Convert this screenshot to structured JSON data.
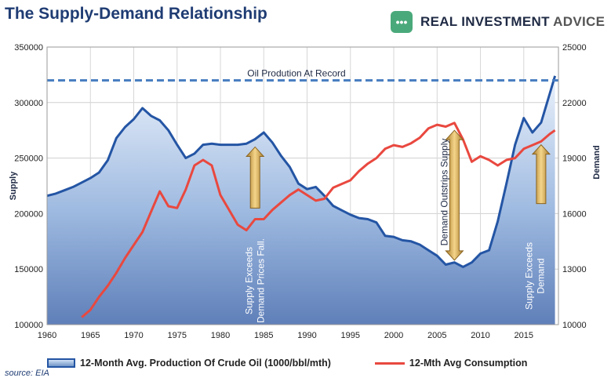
{
  "title": "The Supply-Demand Relationship",
  "brand": {
    "mark": "•••",
    "name_bold": "REAL INVESTMENT",
    "name_rest": "ADVICE"
  },
  "source": "source: EIA",
  "chart_data": {
    "type": "area",
    "title": "The Supply-Demand Relationship",
    "xlabel": "",
    "ylabel_left": "Supply",
    "ylabel_right": "Demand",
    "xlim": [
      1960,
      2019
    ],
    "ylim_left": [
      100000,
      350000
    ],
    "ylim_right": [
      10000,
      25000
    ],
    "x_ticks": [
      1960,
      1965,
      1970,
      1975,
      1980,
      1985,
      1990,
      1995,
      2000,
      2005,
      2010,
      2015
    ],
    "y_ticks_left": [
      "100000",
      "150000",
      "200000",
      "250000",
      "300000",
      "350000"
    ],
    "y_ticks_right": [
      "10000",
      "13000",
      "16000",
      "19000",
      "22000",
      "25000"
    ],
    "grid": true,
    "legend_position": "bottom",
    "colors": {
      "supply": "#2455a4",
      "demand": "#e9483f",
      "record_line": "#4a7fc1",
      "arrow": "#d4a53c"
    },
    "series": [
      {
        "name": "12-Month Avg. Production Of Crude Oil (1000/bbl/mth)",
        "axis": "left",
        "points": [
          [
            1960,
            216000
          ],
          [
            1961,
            218000
          ],
          [
            1962,
            221000
          ],
          [
            1963,
            224000
          ],
          [
            1964,
            228000
          ],
          [
            1965,
            232000
          ],
          [
            1966,
            237000
          ],
          [
            1967,
            248000
          ],
          [
            1968,
            268000
          ],
          [
            1969,
            278000
          ],
          [
            1970,
            285000
          ],
          [
            1971,
            295000
          ],
          [
            1972,
            288000
          ],
          [
            1973,
            284000
          ],
          [
            1974,
            275000
          ],
          [
            1975,
            262000
          ],
          [
            1976,
            250000
          ],
          [
            1977,
            254000
          ],
          [
            1978,
            262000
          ],
          [
            1979,
            263000
          ],
          [
            1980,
            262000
          ],
          [
            1981,
            262000
          ],
          [
            1982,
            262000
          ],
          [
            1983,
            263000
          ],
          [
            1984,
            267000
          ],
          [
            1985,
            273000
          ],
          [
            1986,
            264000
          ],
          [
            1987,
            252000
          ],
          [
            1988,
            242000
          ],
          [
            1989,
            227000
          ],
          [
            1990,
            222000
          ],
          [
            1991,
            224000
          ],
          [
            1992,
            216000
          ],
          [
            1993,
            207000
          ],
          [
            1994,
            203000
          ],
          [
            1995,
            199000
          ],
          [
            1996,
            196000
          ],
          [
            1997,
            195000
          ],
          [
            1998,
            192000
          ],
          [
            1999,
            180000
          ],
          [
            2000,
            179000
          ],
          [
            2001,
            176000
          ],
          [
            2002,
            175000
          ],
          [
            2003,
            172000
          ],
          [
            2004,
            167000
          ],
          [
            2005,
            162000
          ],
          [
            2006,
            154000
          ],
          [
            2007,
            156000
          ],
          [
            2008,
            152000
          ],
          [
            2009,
            156000
          ],
          [
            2010,
            164000
          ],
          [
            2011,
            167000
          ],
          [
            2012,
            193000
          ],
          [
            2013,
            227000
          ],
          [
            2014,
            262000
          ],
          [
            2015,
            286000
          ],
          [
            2016,
            273000
          ],
          [
            2017,
            282000
          ],
          [
            2018,
            308000
          ],
          [
            2018.6,
            324000
          ]
        ]
      },
      {
        "name": "12-Mth Avg Consumption",
        "axis": "right",
        "points": [
          [
            1964,
            10400
          ],
          [
            1965,
            10800
          ],
          [
            1966,
            11500
          ],
          [
            1967,
            12100
          ],
          [
            1968,
            12800
          ],
          [
            1969,
            13600
          ],
          [
            1970,
            14300
          ],
          [
            1971,
            15000
          ],
          [
            1972,
            16100
          ],
          [
            1973,
            17200
          ],
          [
            1974,
            16400
          ],
          [
            1975,
            16300
          ],
          [
            1976,
            17300
          ],
          [
            1977,
            18600
          ],
          [
            1978,
            18900
          ],
          [
            1979,
            18600
          ],
          [
            1980,
            17000
          ],
          [
            1981,
            16200
          ],
          [
            1982,
            15400
          ],
          [
            1983,
            15100
          ],
          [
            1984,
            15700
          ],
          [
            1985,
            15700
          ],
          [
            1986,
            16200
          ],
          [
            1987,
            16600
          ],
          [
            1988,
            17000
          ],
          [
            1989,
            17300
          ],
          [
            1990,
            17000
          ],
          [
            1991,
            16700
          ],
          [
            1992,
            16800
          ],
          [
            1993,
            17400
          ],
          [
            1994,
            17600
          ],
          [
            1995,
            17800
          ],
          [
            1996,
            18300
          ],
          [
            1997,
            18700
          ],
          [
            1998,
            19000
          ],
          [
            1999,
            19500
          ],
          [
            2000,
            19700
          ],
          [
            2001,
            19600
          ],
          [
            2002,
            19800
          ],
          [
            2003,
            20100
          ],
          [
            2004,
            20600
          ],
          [
            2005,
            20800
          ],
          [
            2006,
            20700
          ],
          [
            2007,
            20900
          ],
          [
            2008,
            20000
          ],
          [
            2009,
            18800
          ],
          [
            2010,
            19100
          ],
          [
            2011,
            18900
          ],
          [
            2012,
            18600
          ],
          [
            2013,
            18900
          ],
          [
            2014,
            19000
          ],
          [
            2015,
            19500
          ],
          [
            2016,
            19700
          ],
          [
            2017,
            19900
          ],
          [
            2018,
            20300
          ],
          [
            2018.6,
            20500
          ]
        ]
      }
    ],
    "annotations": [
      {
        "text": "Oil Prodution At Record",
        "type": "horizontal-line",
        "y": 320000,
        "axis": "left"
      },
      {
        "text": "Supply Exceeds Demand Prices Fall.",
        "type": "vertical-text",
        "x": 1984
      },
      {
        "text": "Demand Outstrips Supply",
        "type": "vertical-text",
        "x": 2007
      },
      {
        "text": "Supply Exceeds Demand",
        "type": "vertical-text",
        "x": 2017
      }
    ],
    "arrows": [
      {
        "x": 1984,
        "from": 205000,
        "to": 260000,
        "axis": "left",
        "direction": "up"
      },
      {
        "x": 2007,
        "from": 275000,
        "to": 158000,
        "axis": "left",
        "direction": "both"
      },
      {
        "x": 2017,
        "from": 209000,
        "to": 262000,
        "axis": "left",
        "direction": "up"
      }
    ]
  },
  "legend": {
    "supply_label": "12-Month Avg. Production Of Crude Oil (1000/bbl/mth)",
    "demand_label": "12-Mth Avg Consumption"
  }
}
